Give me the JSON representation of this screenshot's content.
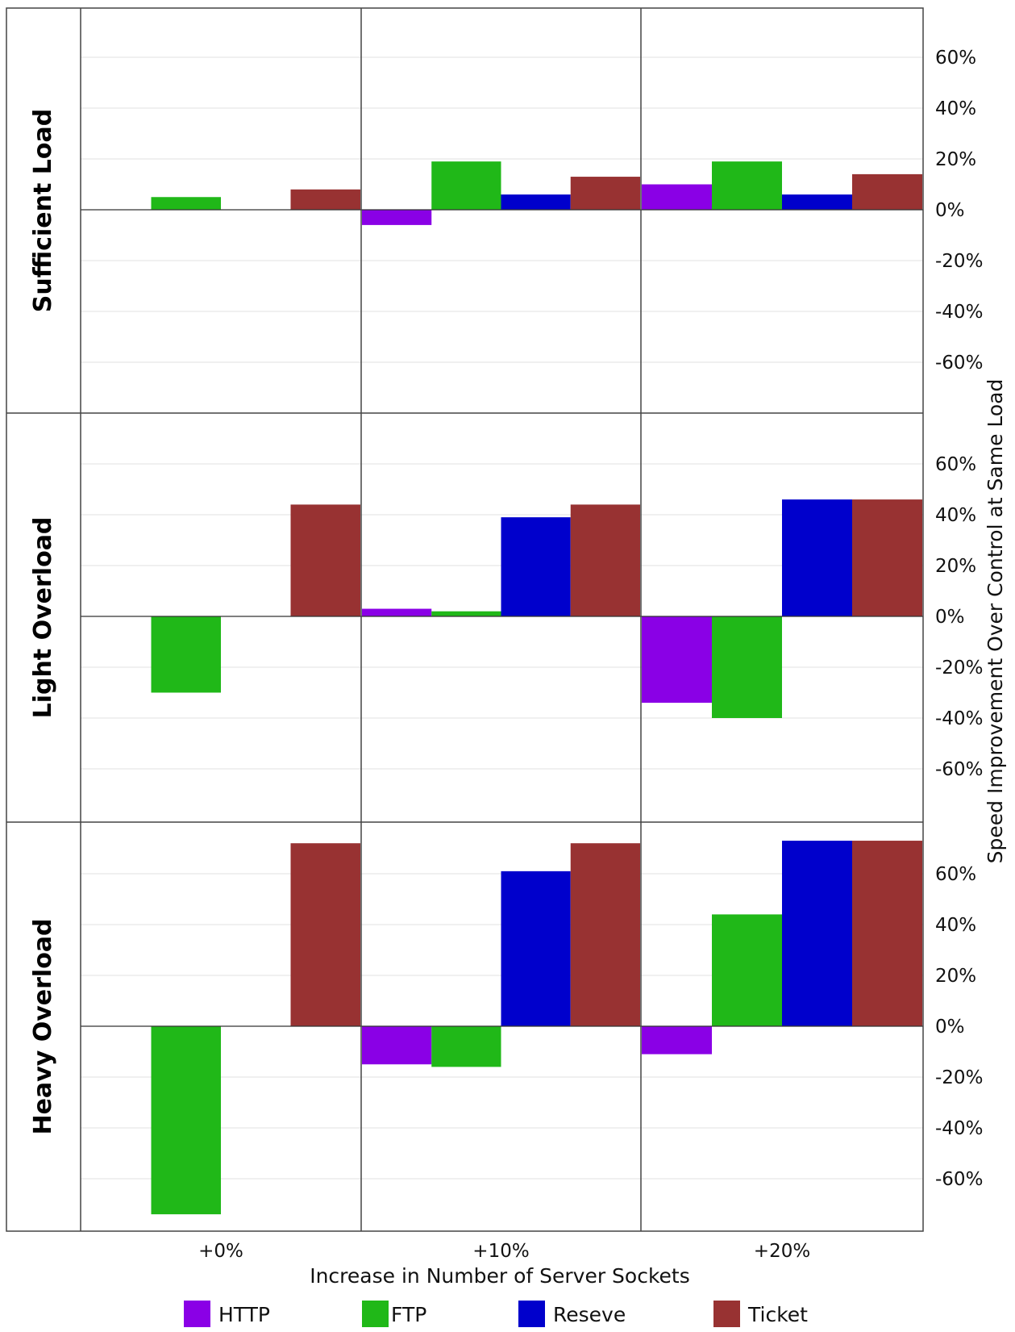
{
  "chart_data": {
    "type": "bar",
    "layout": "faceted-grid",
    "rows": [
      "Sufficient Load",
      "Light Overload",
      "Heavy Overload"
    ],
    "categories": [
      "+0%",
      "+10%",
      "+20%"
    ],
    "xlabel": "Increase in Number of Server Sockets",
    "ylabel": "Speed Improvement Over Control at Same Load",
    "ylim": [
      -0.8,
      0.8
    ],
    "yticks": [
      0.6,
      0.4,
      0.2,
      0,
      -0.2,
      -0.4,
      -0.6
    ],
    "ytick_labels": [
      "60%",
      "40%",
      "20%",
      "0%",
      "-20%",
      "-40%",
      "-60%"
    ],
    "grid": true,
    "legend_position": "bottom",
    "series": [
      {
        "name": "HTTP",
        "color": "#8a00e6",
        "values": [
          [
            0,
            -0.06,
            0.1
          ],
          [
            0,
            0.03,
            -0.34
          ],
          [
            0,
            -0.15,
            -0.11
          ]
        ]
      },
      {
        "name": "FTP",
        "color": "#20b818",
        "values": [
          [
            0.05,
            0.19,
            0.19
          ],
          [
            -0.3,
            0.02,
            -0.4
          ],
          [
            -0.74,
            -0.16,
            0.44
          ]
        ]
      },
      {
        "name": "Reseve",
        "color": "#0000cc",
        "values": [
          [
            0,
            0.06,
            0.06
          ],
          [
            0,
            0.39,
            0.46
          ],
          [
            0,
            0.61,
            0.73
          ]
        ]
      },
      {
        "name": "Ticket",
        "color": "#983232",
        "values": [
          [
            0.08,
            0.13,
            0.14
          ],
          [
            0.44,
            0.44,
            0.46
          ],
          [
            0.72,
            0.72,
            0.73
          ]
        ]
      }
    ]
  }
}
